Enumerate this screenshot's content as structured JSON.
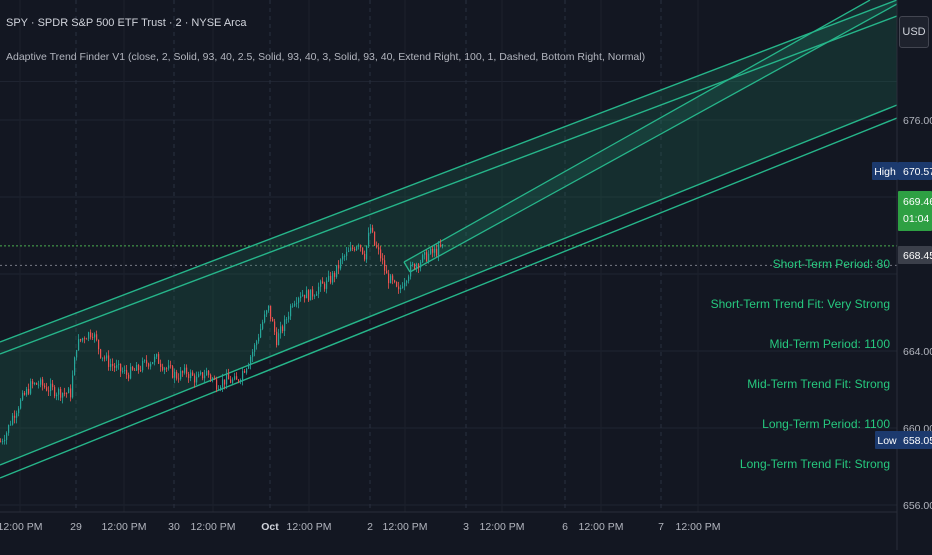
{
  "header": {
    "title": "SPY · SPDR S&P 500 ETF Trust · 2 · NYSE Arca",
    "indicator": "Adaptive Trend Finder V1 (close, 2, Solid, 93, 40, 2.5, Solid, 93, 40, 3, Solid, 93, 40, Extend Right, 100, 1, Dashed, Bottom Right, Normal)"
  },
  "currency_button": "USD",
  "colors": {
    "background": "#131722",
    "channel": "#26b58a",
    "up_candle": "#26a69a",
    "down_candle": "#ef5350",
    "label_text": "#26c97f",
    "price_line": "#4caf50"
  },
  "info_panel": [
    "Short-Term Period: 80",
    "Short-Term Trend Fit: Very Strong",
    "Mid-Term Period: 1100",
    "Mid-Term Trend Fit: Strong",
    "Long-Term Period: 1100",
    "Long-Term Trend Fit: Strong"
  ],
  "chart_data": {
    "type": "candlestick",
    "title": "SPY · SPDR S&P 500 ETF Trust · 2 · NYSE Arca",
    "ylim": [
      655,
      682
    ],
    "price_ticks": [
      "676.00",
      "664.00",
      "660.00",
      "656.00"
    ],
    "price_tick_values": [
      676,
      664,
      660,
      656
    ],
    "x_ticks": [
      "12:00 PM",
      "29",
      "12:00 PM",
      "30",
      "12:00 PM",
      "Oct",
      "12:00 PM",
      "2",
      "12:00 PM",
      "3",
      "12:00 PM",
      "6",
      "12:00 PM",
      "7",
      "12:00 PM"
    ],
    "day_separators": [
      "29",
      "30",
      "Oct",
      "2",
      "3",
      "6",
      "7"
    ],
    "badges": {
      "high": {
        "label": "High",
        "value": "670.57"
      },
      "current": {
        "value": "669.46",
        "countdown": "01:04"
      },
      "previous_close": {
        "value": "668.45"
      },
      "low": {
        "label": "Low",
        "value": "658.05"
      }
    },
    "current_price": 669.46,
    "previous_close": 668.45,
    "price_path": [
      [
        0,
        659.3
      ],
      [
        6,
        659.8
      ],
      [
        12,
        660.6
      ],
      [
        18,
        661.2
      ],
      [
        24,
        661.7
      ],
      [
        30,
        662.2
      ],
      [
        38,
        662.3
      ],
      [
        46,
        662.1
      ],
      [
        56,
        661.9
      ],
      [
        70,
        661.8
      ],
      [
        76,
        664.3
      ],
      [
        84,
        664.8
      ],
      [
        92,
        665.0
      ],
      [
        100,
        663.9
      ],
      [
        108,
        663.4
      ],
      [
        116,
        663.1
      ],
      [
        126,
        662.8
      ],
      [
        136,
        663.0
      ],
      [
        146,
        663.4
      ],
      [
        156,
        663.6
      ],
      [
        166,
        663.1
      ],
      [
        176,
        662.7
      ],
      [
        186,
        662.9
      ],
      [
        196,
        662.5
      ],
      [
        206,
        662.9
      ],
      [
        216,
        662.3
      ],
      [
        226,
        662.5
      ],
      [
        236,
        662.4
      ],
      [
        246,
        663.3
      ],
      [
        254,
        664.2
      ],
      [
        262,
        665.5
      ],
      [
        268,
        666.2
      ],
      [
        276,
        664.6
      ],
      [
        284,
        665.4
      ],
      [
        292,
        666.6
      ],
      [
        300,
        667.0
      ],
      [
        310,
        666.9
      ],
      [
        318,
        667.3
      ],
      [
        326,
        667.5
      ],
      [
        334,
        668.0
      ],
      [
        342,
        668.8
      ],
      [
        350,
        669.2
      ],
      [
        358,
        669.7
      ],
      [
        364,
        669.0
      ],
      [
        370,
        670.4
      ],
      [
        374,
        669.5
      ],
      [
        380,
        668.9
      ],
      [
        386,
        667.9
      ],
      [
        392,
        667.5
      ],
      [
        398,
        667.0
      ],
      [
        402,
        667.6
      ],
      [
        408,
        668.1
      ],
      [
        414,
        668.5
      ],
      [
        420,
        668.7
      ],
      [
        428,
        669.0
      ],
      [
        436,
        669.2
      ],
      [
        444,
        669.46
      ]
    ]
  }
}
